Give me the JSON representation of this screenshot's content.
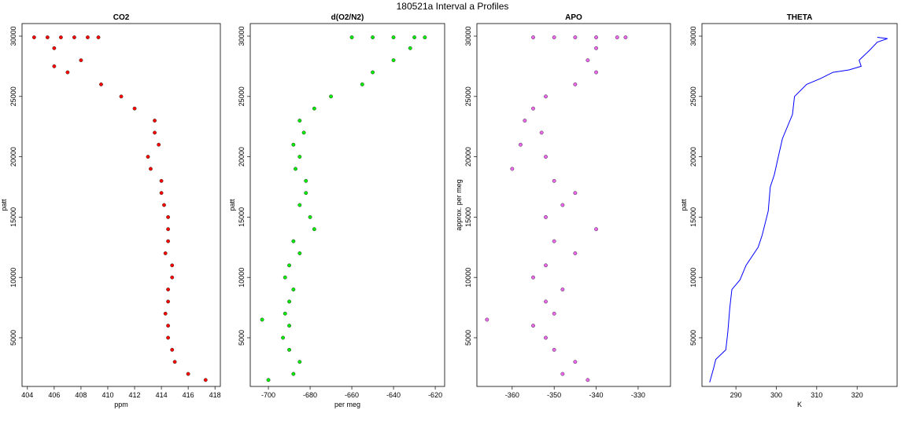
{
  "title": "180521a   Interval a Profiles",
  "chart_data": [
    {
      "type": "scatter",
      "title": "CO2",
      "xlabel": "ppm",
      "ylabel": "patt",
      "color": "#ff0000",
      "x": [
        404.5,
        405.5,
        406.5,
        407.5,
        408.5,
        409.3,
        406,
        408,
        406,
        407,
        409.5,
        411,
        412,
        413.5,
        413.5,
        413.8,
        413,
        413.2,
        414,
        414,
        414.2,
        414.5,
        414.5,
        414.5,
        414.3,
        414.8,
        414.8,
        414.5,
        414.5,
        414.3,
        414.5,
        414.5,
        414.8,
        415,
        416,
        417.3
      ],
      "y": [
        29900,
        29900,
        29900,
        29900,
        29900,
        29900,
        29000,
        28000,
        27500,
        27000,
        26000,
        25000,
        24000,
        23000,
        22000,
        21000,
        20000,
        19000,
        18000,
        17000,
        16000,
        15000,
        14000,
        13000,
        12000,
        11000,
        10000,
        9000,
        8000,
        7000,
        6000,
        5000,
        4000,
        3000,
        2000,
        1500
      ],
      "xlim": [
        403.6,
        418.4
      ],
      "ylim": [
        963,
        31042
      ],
      "xticks": [
        404,
        406,
        408,
        410,
        412,
        414,
        416,
        418
      ],
      "yticks": [
        5000,
        10000,
        15000,
        20000,
        25000,
        30000
      ]
    },
    {
      "type": "scatter",
      "title": "d(O2/N2)",
      "xlabel": "per meg",
      "ylabel": "patt",
      "color": "#00ee00",
      "x": [
        -660,
        -650,
        -640,
        -630,
        -625,
        -632,
        -640,
        -650,
        -655,
        -670,
        -678,
        -685,
        -683,
        -688,
        -685,
        -687,
        -682,
        -682,
        -685,
        -680,
        -678,
        -688,
        -685,
        -690,
        -692,
        -688,
        -690,
        -692,
        -703,
        -690,
        -693,
        -690,
        -685,
        -688,
        -700
      ],
      "y": [
        29900,
        29900,
        29900,
        29900,
        29900,
        29000,
        28000,
        27000,
        26000,
        25000,
        24000,
        23000,
        22000,
        21000,
        20000,
        19000,
        18000,
        17000,
        16000,
        15000,
        14000,
        13000,
        12000,
        11000,
        10000,
        9000,
        8000,
        7000,
        6500,
        6000,
        5000,
        4000,
        3000,
        2000,
        1500
      ],
      "xlim": [
        -708.7,
        -615.5
      ],
      "ylim": [
        963,
        31042
      ],
      "xticks": [
        -700,
        -680,
        -660,
        -640,
        -620
      ],
      "yticks": [
        5000,
        10000,
        15000,
        20000,
        25000,
        30000
      ]
    },
    {
      "type": "scatter",
      "title": "APO",
      "ylabel": "approx. per meg",
      "color": "#ee66ee",
      "x": [
        -355,
        -350,
        -345,
        -340,
        -335,
        -333,
        -340,
        -342,
        -340,
        -345,
        -352,
        -355,
        -357,
        -353,
        -358,
        -352,
        -360,
        -350,
        -345,
        -348,
        -352,
        -340,
        -350,
        -345,
        -352,
        -355,
        -348,
        -352,
        -350,
        -366,
        -355,
        -352,
        -350,
        -345,
        -348,
        -342
      ],
      "y": [
        29900,
        29900,
        29900,
        29900,
        29900,
        29900,
        29000,
        28000,
        27000,
        26000,
        25000,
        24000,
        23000,
        22000,
        21000,
        20000,
        19000,
        18000,
        17000,
        16000,
        15000,
        14000,
        13000,
        12000,
        11000,
        10000,
        9000,
        8000,
        7000,
        6500,
        6000,
        5000,
        4000,
        3000,
        2000,
        1500
      ],
      "xlim": [
        -368.4,
        -322.3
      ],
      "ylim": [
        963,
        31042
      ],
      "xticks": [
        -360,
        -350,
        -340,
        -330
      ],
      "yticks": [
        5000,
        10000,
        15000,
        20000,
        25000,
        30000
      ]
    },
    {
      "type": "line",
      "title": "THETA",
      "xlabel": "K",
      "ylabel": "patt",
      "color": "#0000ff",
      "x": [
        283.5,
        284.5,
        285,
        287.5,
        288,
        288.5,
        289,
        291,
        292.5,
        295.5,
        296.5,
        298,
        298.5,
        299.5,
        300.5,
        301.5,
        304,
        304.5,
        307.5,
        311,
        314,
        318,
        321,
        320.5,
        323,
        325,
        327.5,
        325
      ],
      "y": [
        1300,
        2500,
        3200,
        4000,
        5500,
        7500,
        9000,
        9800,
        11000,
        12500,
        13500,
        15500,
        17500,
        18500,
        20000,
        21500,
        23500,
        25000,
        26000,
        26500,
        27000,
        27200,
        27500,
        28000,
        28800,
        29500,
        29800,
        29900
      ],
      "xlim": [
        281.6,
        329.9
      ],
      "ylim": [
        963,
        31042
      ],
      "xticks": [
        290,
        300,
        310,
        320
      ],
      "yticks": [
        5000,
        10000,
        15000,
        20000,
        25000,
        30000
      ]
    }
  ]
}
